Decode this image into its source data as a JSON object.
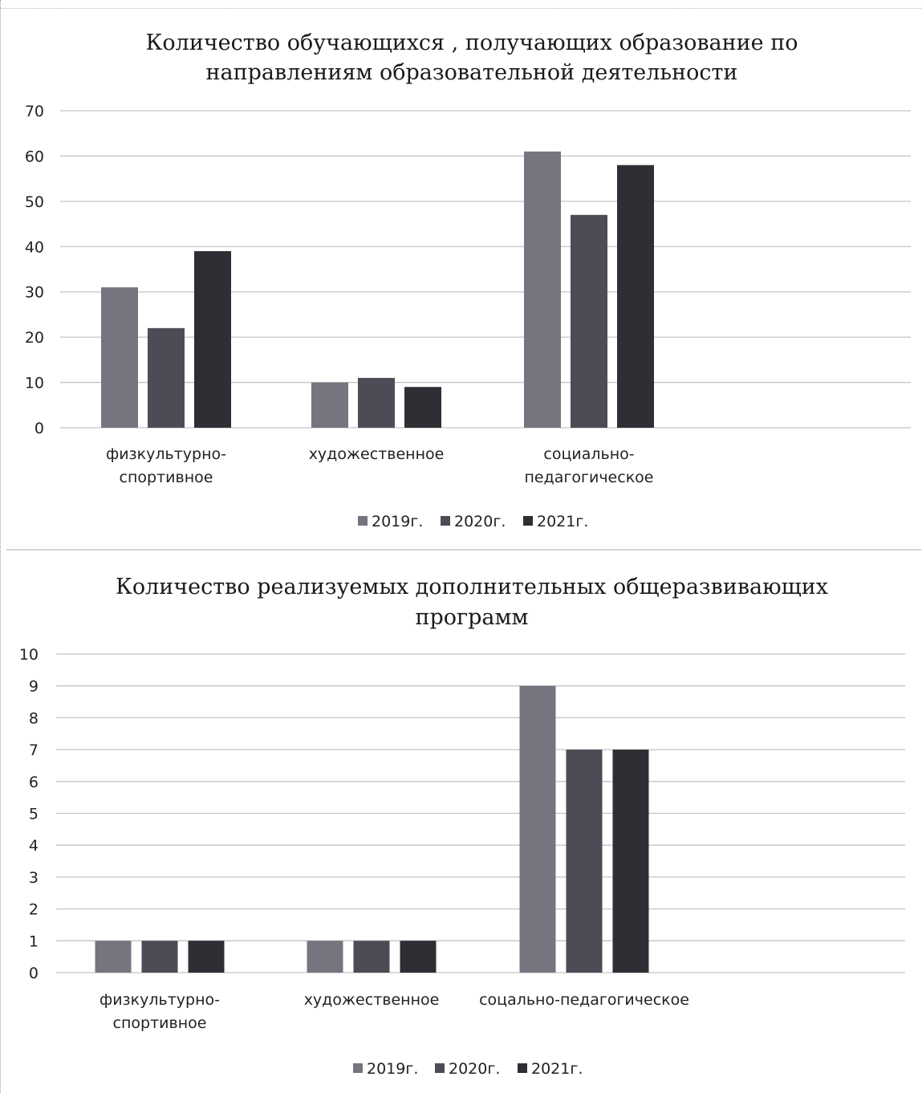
{
  "colors": {
    "s2019": "#77747f",
    "s2020": "#4d4b55",
    "s2021": "#2f2e35",
    "grid": "#c4c4c4"
  },
  "chart_data": [
    {
      "type": "bar",
      "title_lines": [
        "Количество обучающихся , получающих образование по",
        "направлениям образовательной деятельности"
      ],
      "categories": [
        [
          "физкультурно-",
          "спортивное"
        ],
        [
          "художественное"
        ],
        [
          "социально-",
          "педагогическое"
        ]
      ],
      "series": [
        {
          "name": "2019г.",
          "values": [
            31,
            10,
            61
          ]
        },
        {
          "name": "2020г.",
          "values": [
            22,
            11,
            47
          ]
        },
        {
          "name": "2021г.",
          "values": [
            39,
            9,
            58
          ]
        }
      ],
      "yticks": [
        0,
        10,
        20,
        30,
        40,
        50,
        60,
        70
      ],
      "ylim": [
        0,
        70
      ],
      "grid": true,
      "legend": "bottom"
    },
    {
      "type": "bar",
      "title_lines": [
        "Количество реализуемых дополнительных общеразвивающих",
        "программ"
      ],
      "categories": [
        [
          "физкультурно-",
          "спортивное"
        ],
        [
          "художественное"
        ],
        [
          "соцально-педагогическое"
        ]
      ],
      "series": [
        {
          "name": "2019г.",
          "values": [
            1,
            1,
            9
          ]
        },
        {
          "name": "2020г.",
          "values": [
            1,
            1,
            7
          ]
        },
        {
          "name": "2021г.",
          "values": [
            1,
            1,
            7
          ]
        }
      ],
      "yticks": [
        0,
        1,
        2,
        3,
        4,
        5,
        6,
        7,
        8,
        9,
        10
      ],
      "ylim": [
        0,
        10
      ],
      "grid": true,
      "legend": "bottom"
    }
  ]
}
